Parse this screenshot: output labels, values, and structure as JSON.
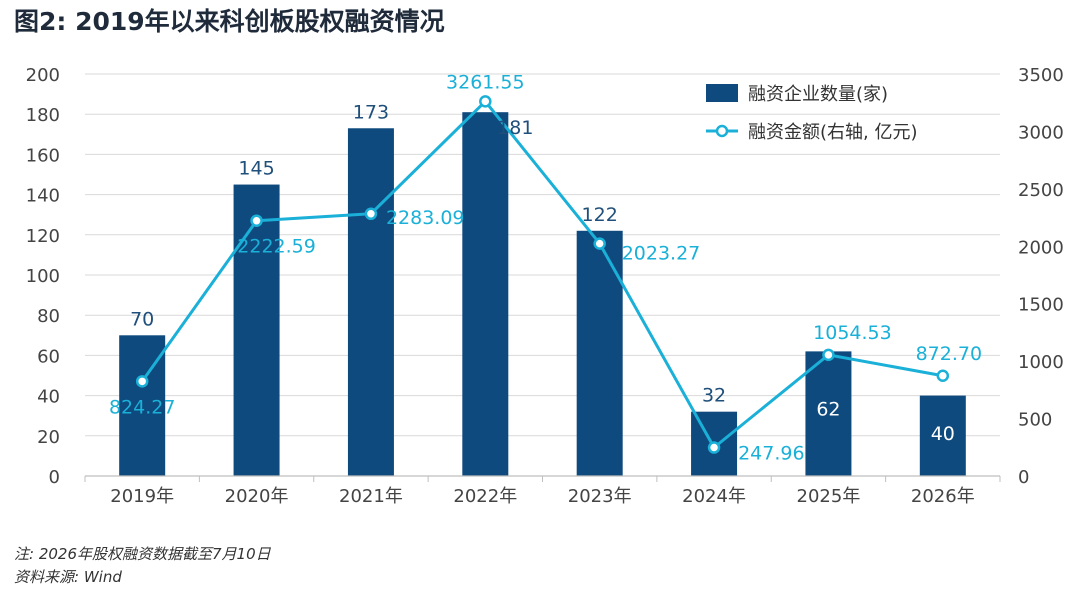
{
  "page": {
    "title": "图2: 2019年以来科创板股权融资情况",
    "note": "注: 2026年股权融资数据截至7月10日",
    "source": "资料来源: Wind"
  },
  "colors": {
    "bar": "#0e4a7e",
    "line": "#1ab0d8",
    "bar_label": "#1f4f7a",
    "line_label": "#1ab0d8",
    "grid": "#d9d9d9",
    "axis_text": "#444444"
  },
  "chart_data": {
    "type": "bar",
    "categories": [
      "2019年",
      "2020年",
      "2021年",
      "2022年",
      "2023年",
      "2024年",
      "2025年",
      "2026年"
    ],
    "series": [
      {
        "name": "融资企业数量(家)",
        "type": "bar",
        "axis": "left",
        "values": [
          70,
          145,
          173,
          181,
          122,
          32,
          62,
          40
        ],
        "labels": [
          "70",
          "145",
          "173",
          "181",
          "122",
          "32",
          "62",
          "40"
        ]
      },
      {
        "name": "融资金额(右轴, 亿元)",
        "type": "line",
        "axis": "right",
        "values": [
          824.27,
          2222.59,
          2283.09,
          3261.55,
          2023.27,
          247.96,
          1054.53,
          872.7
        ],
        "labels": [
          "824.27",
          "2222.59",
          "2283.09",
          "3261.55",
          "2023.27",
          "247.96",
          "1054.53",
          "872.70"
        ]
      }
    ],
    "y_left": {
      "min": 0,
      "max": 200,
      "ticks": [
        "0",
        "20",
        "40",
        "60",
        "80",
        "100",
        "120",
        "140",
        "160",
        "180",
        "200"
      ]
    },
    "y_right": {
      "min": 0,
      "max": 3500,
      "ticks": [
        "0",
        "500",
        "1000",
        "1500",
        "2000",
        "2500",
        "3000",
        "3500"
      ]
    },
    "grid": true,
    "legend_position": "top-right"
  }
}
